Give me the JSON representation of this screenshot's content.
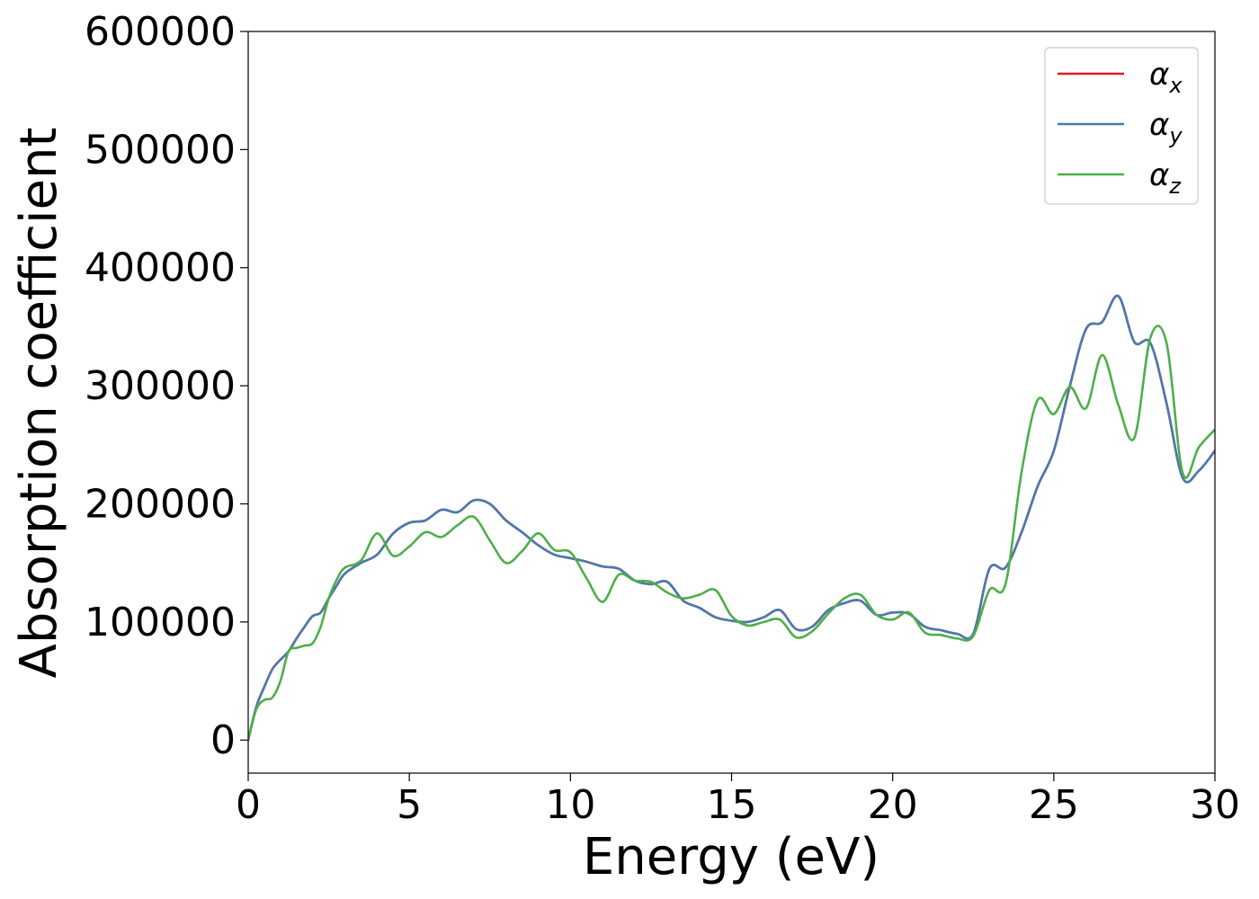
{
  "chart_data": {
    "type": "line",
    "title": "",
    "xlabel": "Energy (eV)",
    "ylabel": "Absorption coefficient",
    "xlim": [
      0,
      30
    ],
    "ylim": [
      -28000,
      600000
    ],
    "xticks": [
      "0",
      "5",
      "10",
      "15",
      "20",
      "25",
      "30"
    ],
    "yticks": [
      "0",
      "100000",
      "200000",
      "300000",
      "400000",
      "500000",
      "600000"
    ],
    "grid": false,
    "legend_position": "top-right",
    "series": [
      {
        "name": "α_x",
        "legend_main": "α",
        "legend_sub": "x",
        "color": "#e41a1c",
        "x": [
          0,
          0.25,
          0.5,
          0.75,
          1,
          1.25,
          1.5,
          1.75,
          2,
          2.25,
          2.5,
          2.75,
          3,
          3.5,
          4,
          4.5,
          5,
          5.5,
          6,
          6.5,
          7,
          7.5,
          8,
          8.5,
          9,
          9.5,
          10,
          10.5,
          11,
          11.5,
          12,
          12.5,
          13,
          13.5,
          14,
          14.5,
          15,
          15.5,
          16,
          16.5,
          17,
          17.5,
          18,
          18.5,
          19,
          19.5,
          20,
          20.5,
          21,
          21.5,
          22,
          22.5,
          23,
          23.5,
          24,
          24.5,
          25,
          25.5,
          26,
          26.5,
          27,
          27.5,
          28,
          28.5,
          29,
          29.5,
          30
        ],
        "y": [
          0,
          28000,
          45000,
          60000,
          68000,
          75000,
          86000,
          96000,
          105000,
          108000,
          120000,
          131000,
          141000,
          150000,
          157000,
          175000,
          184000,
          186000,
          195000,
          193000,
          203000,
          200000,
          186000,
          176000,
          165000,
          157000,
          154000,
          151000,
          147000,
          145000,
          135000,
          132000,
          134000,
          118000,
          112000,
          104000,
          101000,
          100000,
          104000,
          110000,
          94000,
          96000,
          110000,
          116000,
          118000,
          106000,
          108000,
          107000,
          96000,
          93000,
          90000,
          90000,
          145000,
          146000,
          176000,
          215000,
          245000,
          300000,
          348000,
          354000,
          376000,
          337000,
          336000,
          285000,
          222000,
          228000,
          245000
        ]
      },
      {
        "name": "α_y",
        "legend_main": "α",
        "legend_sub": "y",
        "color": "#4a7aae",
        "x": [
          0,
          0.25,
          0.5,
          0.75,
          1,
          1.25,
          1.5,
          1.75,
          2,
          2.25,
          2.5,
          2.75,
          3,
          3.5,
          4,
          4.5,
          5,
          5.5,
          6,
          6.5,
          7,
          7.5,
          8,
          8.5,
          9,
          9.5,
          10,
          10.5,
          11,
          11.5,
          12,
          12.5,
          13,
          13.5,
          14,
          14.5,
          15,
          15.5,
          16,
          16.5,
          17,
          17.5,
          18,
          18.5,
          19,
          19.5,
          20,
          20.5,
          21,
          21.5,
          22,
          22.5,
          23,
          23.5,
          24,
          24.5,
          25,
          25.5,
          26,
          26.5,
          27,
          27.5,
          28,
          28.5,
          29,
          29.5,
          30
        ],
        "y": [
          0,
          28000,
          45000,
          60000,
          68000,
          75000,
          86000,
          96000,
          105000,
          108000,
          120000,
          131000,
          141000,
          150000,
          157000,
          175000,
          184000,
          186000,
          195000,
          193000,
          203000,
          200000,
          186000,
          176000,
          165000,
          157000,
          154000,
          151000,
          147000,
          145000,
          135000,
          132000,
          134000,
          118000,
          112000,
          104000,
          101000,
          100000,
          104000,
          110000,
          94000,
          96000,
          110000,
          116000,
          118000,
          106000,
          108000,
          107000,
          96000,
          93000,
          90000,
          90000,
          145000,
          146000,
          176000,
          215000,
          245000,
          300000,
          348000,
          354000,
          376000,
          337000,
          336000,
          285000,
          222000,
          228000,
          245000
        ]
      },
      {
        "name": "α_z",
        "legend_main": "α",
        "legend_sub": "z",
        "color": "#4daf4a",
        "x": [
          0,
          0.25,
          0.5,
          0.75,
          1,
          1.25,
          1.5,
          1.75,
          2,
          2.25,
          2.5,
          2.75,
          3,
          3.5,
          4,
          4.5,
          5,
          5.5,
          6,
          6.5,
          7,
          7.5,
          8,
          8.5,
          9,
          9.5,
          10,
          10.5,
          11,
          11.5,
          12,
          12.5,
          13,
          13.5,
          14,
          14.5,
          15,
          15.5,
          16,
          16.5,
          17,
          17.5,
          18,
          18.5,
          19,
          19.5,
          20,
          20.5,
          21,
          21.5,
          22,
          22.5,
          23,
          23.5,
          24,
          24.5,
          25,
          25.5,
          26,
          26.5,
          27,
          27.5,
          28,
          28.5,
          29,
          29.5,
          30
        ],
        "y": [
          0,
          26000,
          34000,
          36000,
          50000,
          75000,
          78000,
          80000,
          82000,
          96000,
          120000,
          136000,
          146000,
          152000,
          175000,
          156000,
          164000,
          176000,
          172000,
          182000,
          189000,
          169000,
          150000,
          160000,
          175000,
          161000,
          159000,
          137000,
          117000,
          140000,
          135000,
          134000,
          125000,
          120000,
          123000,
          127000,
          105000,
          97000,
          100000,
          102000,
          87000,
          92000,
          107000,
          120000,
          123000,
          106000,
          102000,
          108000,
          91000,
          89000,
          86000,
          88000,
          127000,
          132000,
          227000,
          288000,
          276000,
          299000,
          281000,
          326000,
          284000,
          256000,
          341000,
          336000,
          226000,
          248000,
          263000
        ]
      }
    ]
  }
}
